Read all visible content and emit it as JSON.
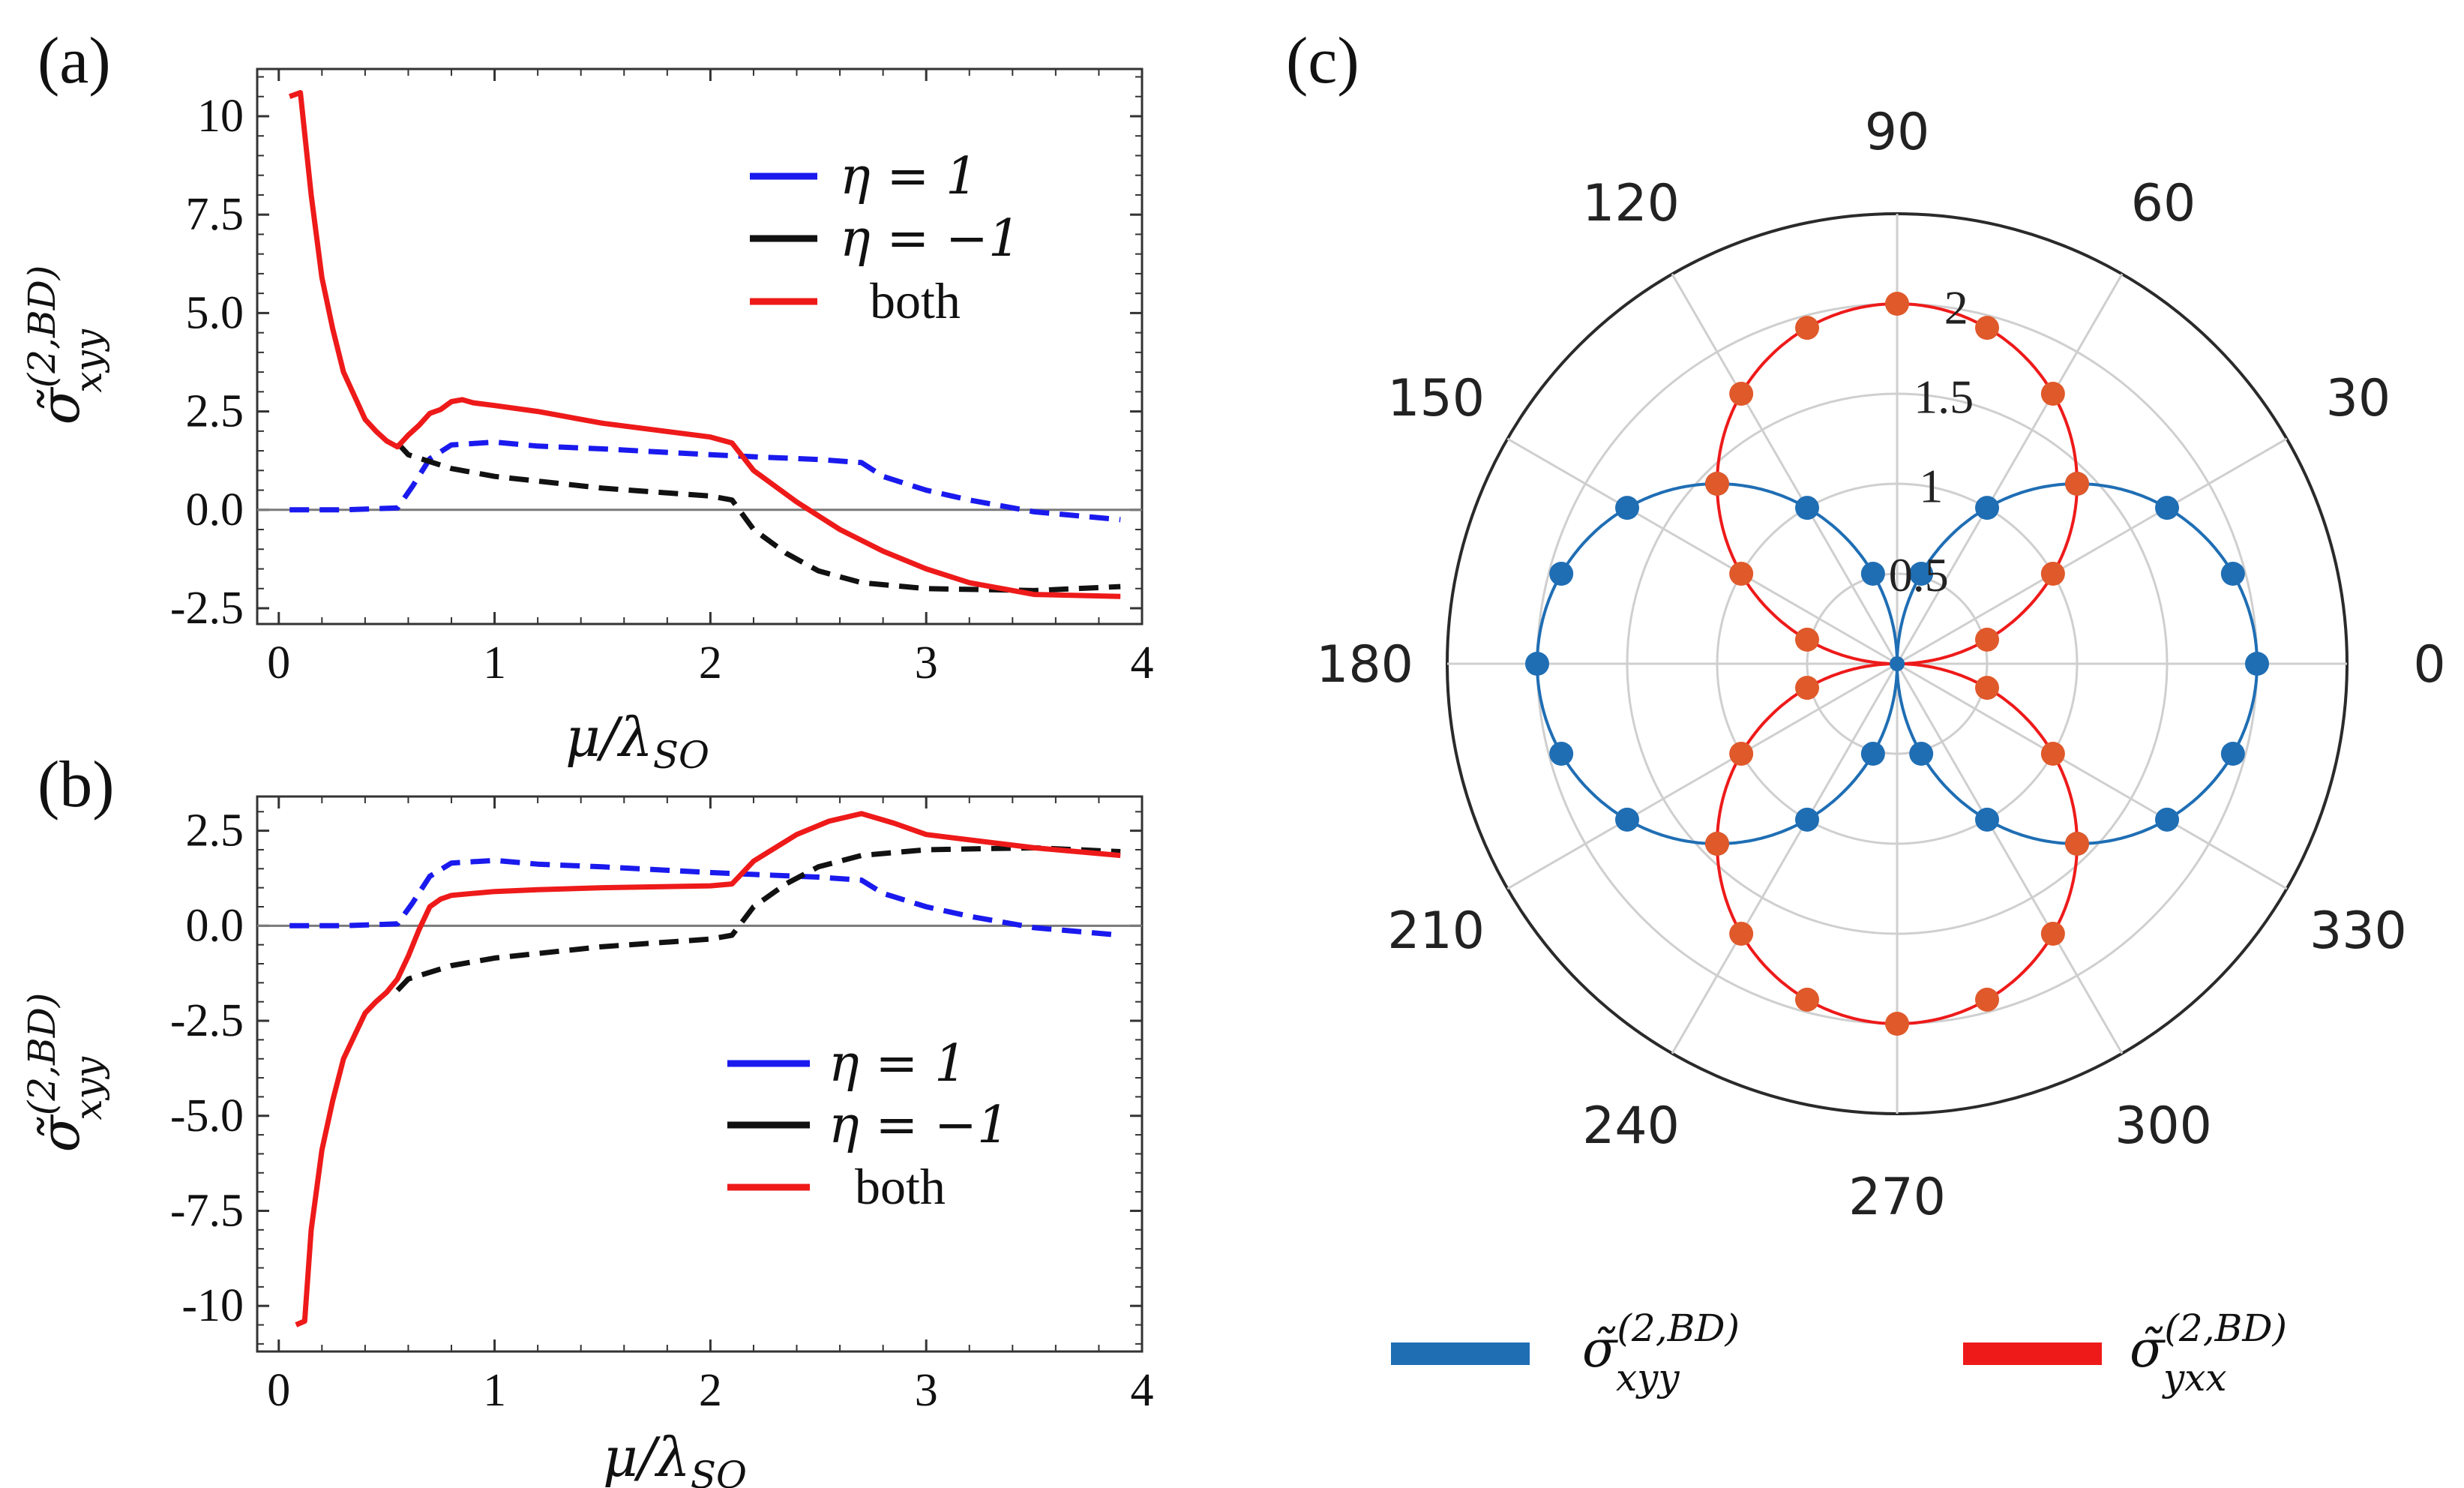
{
  "chart_data": [
    {
      "panel": "(a)",
      "type": "line",
      "xlabel_main": "μ/λ",
      "xlabel_sub": "SO",
      "ylabel_main": "σ̃",
      "ylabel_sup": "(2,BD)",
      "ylabel_sub": "xyy",
      "xlim": [
        -0.1,
        4.0
      ],
      "ylim": [
        -2.9,
        11.2
      ],
      "xticks": [
        0,
        1,
        2,
        3,
        4
      ],
      "xtick_labels": [
        "0",
        "1",
        "2",
        "3",
        "4"
      ],
      "yticks": [
        -2.5,
        0,
        2.5,
        5,
        7.5,
        10
      ],
      "ytick_labels": [
        "-2.5",
        "0.0",
        "2.5",
        "5.0",
        "7.5",
        "10"
      ],
      "legend": [
        "η = 1",
        "η = −1",
        "both"
      ],
      "series": [
        {
          "name": "η = 1",
          "color": "#1a1aee",
          "dash": "dashed",
          "x": [
            0.05,
            0.3,
            0.55,
            0.62,
            0.7,
            0.8,
            1.0,
            1.2,
            1.5,
            2.0,
            2.2,
            2.5,
            2.7,
            2.8,
            3.0,
            3.2,
            3.5,
            3.9
          ],
          "y": [
            0,
            0,
            0.05,
            0.6,
            1.3,
            1.65,
            1.72,
            1.62,
            1.55,
            1.4,
            1.35,
            1.28,
            1.2,
            0.85,
            0.5,
            0.25,
            -0.05,
            -0.25
          ]
        },
        {
          "name": "η = −1",
          "color": "#111111",
          "dash": "dashed",
          "x": [
            0.55,
            0.6,
            0.8,
            1.0,
            1.5,
            2.0,
            2.1,
            2.2,
            2.35,
            2.5,
            2.7,
            3.0,
            3.5,
            3.9
          ],
          "y": [
            1.7,
            1.4,
            1.05,
            0.85,
            0.55,
            0.35,
            0.25,
            -0.5,
            -1.1,
            -1.55,
            -1.85,
            -2.0,
            -2.05,
            -1.95
          ]
        },
        {
          "name": "both",
          "color": "#ee1a1a",
          "dash": "solid",
          "x": [
            0.05,
            0.1,
            0.15,
            0.2,
            0.25,
            0.3,
            0.35,
            0.4,
            0.45,
            0.5,
            0.55,
            0.6,
            0.65,
            0.7,
            0.75,
            0.8,
            0.85,
            0.9,
            1.0,
            1.2,
            1.5,
            2.0,
            2.1,
            2.2,
            2.4,
            2.6,
            2.8,
            3.0,
            3.2,
            3.5,
            3.9
          ],
          "y": [
            10.5,
            10.6,
            8.0,
            5.9,
            4.6,
            3.5,
            2.9,
            2.3,
            2.0,
            1.75,
            1.6,
            1.9,
            2.15,
            2.45,
            2.55,
            2.75,
            2.8,
            2.72,
            2.65,
            2.5,
            2.2,
            1.85,
            1.7,
            1.0,
            0.2,
            -0.5,
            -1.05,
            -1.5,
            -1.85,
            -2.15,
            -2.2
          ]
        }
      ]
    },
    {
      "panel": "(b)",
      "type": "line",
      "xlabel_main": "μ/λ",
      "xlabel_sub": "SO",
      "ylabel_main": "σ̃",
      "ylabel_sup": "(2,BD)",
      "ylabel_sub": "xyy",
      "xlim": [
        -0.1,
        4.0
      ],
      "ylim": [
        -11.2,
        3.4
      ],
      "xticks": [
        0,
        1,
        2,
        3,
        4
      ],
      "xtick_labels": [
        "0",
        "1",
        "2",
        "3",
        "4"
      ],
      "yticks": [
        -10,
        -7.5,
        -5,
        -2.5,
        0,
        2.5
      ],
      "ytick_labels": [
        "-10",
        "-7.5",
        "-5.0",
        "-2.5",
        "0.0",
        "2.5"
      ],
      "legend": [
        "η = 1",
        "η = −1",
        "both"
      ],
      "series": [
        {
          "name": "η = 1",
          "color": "#1a1aee",
          "dash": "dashed",
          "x": [
            0.05,
            0.3,
            0.55,
            0.62,
            0.7,
            0.8,
            1.0,
            1.2,
            1.5,
            2.0,
            2.2,
            2.5,
            2.7,
            2.8,
            3.0,
            3.2,
            3.5,
            3.9
          ],
          "y": [
            0,
            0,
            0.05,
            0.6,
            1.3,
            1.65,
            1.72,
            1.62,
            1.55,
            1.4,
            1.35,
            1.28,
            1.2,
            0.85,
            0.5,
            0.25,
            -0.05,
            -0.25
          ]
        },
        {
          "name": "η = −1",
          "color": "#111111",
          "dash": "dashed",
          "x": [
            0.55,
            0.6,
            0.8,
            1.0,
            1.5,
            2.0,
            2.1,
            2.2,
            2.35,
            2.5,
            2.7,
            3.0,
            3.5,
            3.9
          ],
          "y": [
            -1.7,
            -1.4,
            -1.05,
            -0.85,
            -0.55,
            -0.35,
            -0.25,
            0.5,
            1.1,
            1.55,
            1.85,
            2.0,
            2.05,
            1.95
          ]
        },
        {
          "name": "both",
          "color": "#ee1a1a",
          "dash": "solid",
          "x": [
            0.08,
            0.12,
            0.15,
            0.2,
            0.25,
            0.3,
            0.35,
            0.4,
            0.45,
            0.5,
            0.55,
            0.6,
            0.65,
            0.7,
            0.75,
            0.8,
            0.9,
            1.0,
            1.2,
            1.5,
            2.0,
            2.1,
            2.2,
            2.4,
            2.55,
            2.7,
            2.85,
            3.0,
            3.5,
            3.9
          ],
          "y": [
            -10.5,
            -10.4,
            -8.0,
            -5.9,
            -4.6,
            -3.5,
            -2.9,
            -2.3,
            -2.0,
            -1.75,
            -1.4,
            -0.8,
            -0.1,
            0.5,
            0.7,
            0.8,
            0.85,
            0.9,
            0.95,
            1.0,
            1.05,
            1.1,
            1.7,
            2.4,
            2.75,
            2.95,
            2.7,
            2.4,
            2.05,
            1.85
          ]
        }
      ]
    },
    {
      "panel": "(c)",
      "type": "polar",
      "angle_labels": [
        "0",
        "30",
        "60",
        "90",
        "120",
        "150",
        "180",
        "210",
        "240",
        "270",
        "300",
        "330"
      ],
      "radial_ticks": [
        0.5,
        1,
        1.5,
        2
      ],
      "radial_tick_labels": [
        "0.5",
        "1",
        "1.5",
        "2"
      ],
      "rmax": 2.5,
      "angle_step_deg": 15,
      "legend_main": "σ̃",
      "legend_sup": "(2,BD)",
      "series": [
        {
          "name": "xyy",
          "color": "#1f6eb4",
          "model": "2|cos θ|",
          "amplitude": 2.0,
          "marker_step_deg": 15
        },
        {
          "name": "yxx",
          "color": "#ee1a1a",
          "marker_color": "#e0592a",
          "model": "2|sin θ|",
          "amplitude": 2.0,
          "marker_step_deg": 15
        }
      ]
    }
  ],
  "colors": {
    "zero_line": "#7a7a7a",
    "grid": "#cfcfcf",
    "axis": "#333333"
  }
}
